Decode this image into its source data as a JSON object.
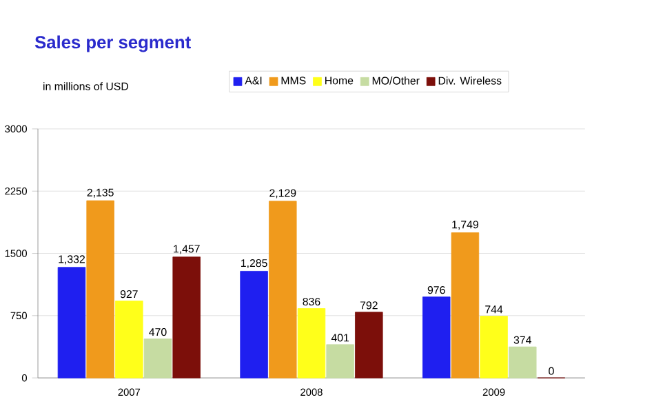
{
  "chart_data": {
    "type": "bar",
    "title": "Sales per segment",
    "ylabel": "in millions of USD",
    "categories": [
      "2007",
      "2008",
      "2009"
    ],
    "series": [
      {
        "name": "A&I",
        "color": "#1f1ff0",
        "values": [
          1332,
          1285,
          976
        ],
        "value_labels": [
          "1,332",
          "1,285",
          "976"
        ]
      },
      {
        "name": "MMS",
        "color": "#f09a1c",
        "values": [
          2135,
          2129,
          1749
        ],
        "value_labels": [
          "2,135",
          "2,129",
          "1,749"
        ]
      },
      {
        "name": "Home",
        "color": "#ffff1a",
        "values": [
          927,
          836,
          744
        ],
        "value_labels": [
          "927",
          "836",
          "744"
        ]
      },
      {
        "name": "MO/Other",
        "color": "#c6dca2",
        "values": [
          470,
          401,
          374
        ],
        "value_labels": [
          "470",
          "401",
          "374"
        ]
      },
      {
        "name": "Div. Wireless",
        "color": "#7c0f0a",
        "values": [
          1457,
          792,
          0
        ],
        "value_labels": [
          "1,457",
          "792",
          "0"
        ]
      }
    ],
    "ylim": [
      0,
      3000
    ],
    "yticks": [
      0,
      750,
      1500,
      2250,
      3000
    ],
    "grid": "y",
    "legend": "top"
  }
}
